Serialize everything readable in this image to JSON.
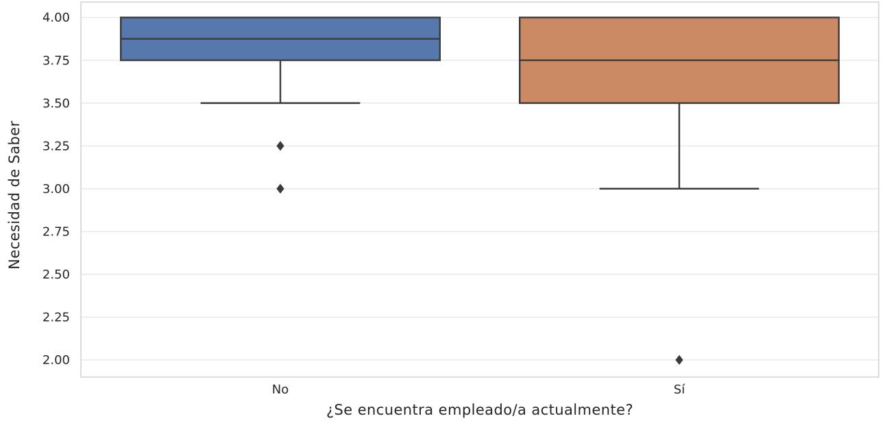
{
  "chart_data": {
    "type": "boxplot",
    "title": "",
    "xlabel": "¿Se encuentra empleado/a actualmente?",
    "ylabel": "Necesidad de Saber",
    "categories": [
      "No",
      "Sí"
    ],
    "ylim": [
      1.9,
      4.09
    ],
    "yticks": [
      4.0,
      3.75,
      3.5,
      3.25,
      3.0,
      2.75,
      2.5,
      2.25,
      2.0
    ],
    "ytick_labels": [
      "4.00",
      "3.75",
      "3.50",
      "3.25",
      "3.00",
      "2.75",
      "2.50",
      "2.25",
      "2.00"
    ],
    "grid": "horizontal",
    "legend": "none",
    "series": [
      {
        "category": "No",
        "fill_color": "#5678AC",
        "q1": 3.75,
        "median": 3.875,
        "q3": 4.0,
        "whisker_low": 3.5,
        "whisker_high": 4.0,
        "outliers": [
          3.25,
          3.0
        ]
      },
      {
        "category": "Sí",
        "fill_color": "#CB8A63",
        "q1": 3.5,
        "median": 3.75,
        "q3": 4.0,
        "whisker_low": 3.0,
        "whisker_high": 4.0,
        "outliers": [
          2.0
        ]
      }
    ],
    "colors": {
      "edge": "#3A3A3A",
      "grid": "#E7E7E7",
      "spine": "#D8D8D8",
      "text": "#262626",
      "background": "#FFFFFF"
    }
  }
}
